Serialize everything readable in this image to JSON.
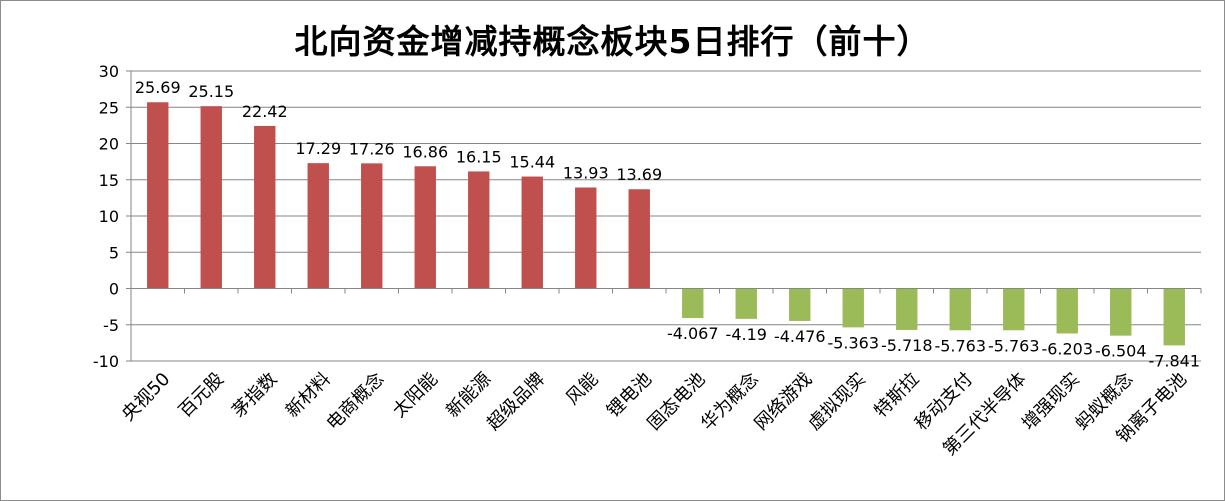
{
  "chart_data": {
    "type": "bar",
    "title": "北向资金增减持概念板块5日排行（前十）",
    "categories": [
      "央视50",
      "百元股",
      "茅指数",
      "新材料",
      "电商概念",
      "太阳能",
      "新能源",
      "超级品牌",
      "风能",
      "锂电池",
      "固态电池",
      "华为概念",
      "网络游戏",
      "虚拟现实",
      "特斯拉",
      "移动支付",
      "第三代半导体",
      "增强现实",
      "蚂蚁概念",
      "钠离子电池"
    ],
    "values": [
      25.69,
      25.15,
      22.42,
      17.29,
      17.26,
      16.86,
      16.15,
      15.44,
      13.93,
      13.69,
      -4.067,
      -4.19,
      -4.476,
      -5.363,
      -5.718,
      -5.763,
      -5.763,
      -6.203,
      -6.504,
      -7.841
    ],
    "value_labels": [
      "25.69",
      "25.15",
      "22.42",
      "17.29",
      "17.26",
      "16.86",
      "16.15",
      "15.44",
      "13.93",
      "13.69",
      "-4.067",
      "-4.19",
      "-4.476",
      "-5.363",
      "-5.718",
      "-5.763",
      "-5.763",
      "-6.203",
      "-6.504",
      "-7.841"
    ],
    "ylim": [
      -10,
      30
    ],
    "yticks": [
      30,
      25,
      20,
      15,
      10,
      5,
      0,
      -5,
      -10
    ],
    "grid": true,
    "legend": "none",
    "xlabel": "",
    "ylabel": "",
    "colors": {
      "positive": "#c0504d",
      "negative": "#9bbb59",
      "grid": "#868686",
      "axis": "#868686"
    }
  }
}
